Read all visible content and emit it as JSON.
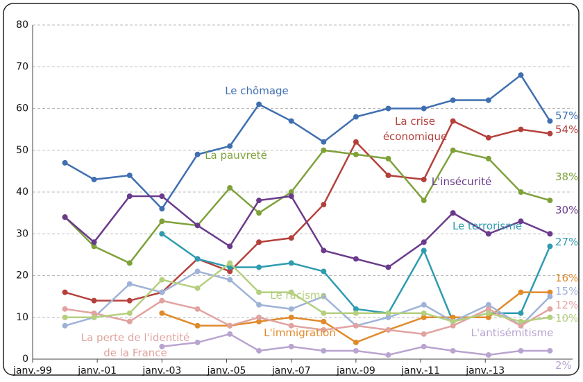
{
  "chart_data": {
    "type": "line",
    "x": [
      2000.0,
      2000.9,
      2002.0,
      2003.0,
      2004.1,
      2005.1,
      2006.0,
      2007.0,
      2008.0,
      2009.0,
      2010.0,
      2011.1,
      2012.0,
      2013.1,
      2014.1,
      2015.0
    ],
    "xlim": [
      1999,
      2015.7
    ],
    "xticks": [
      {
        "value": 1999,
        "label": "janv.-99"
      },
      {
        "value": 2001,
        "label": "janv.-01"
      },
      {
        "value": 2003,
        "label": "janv.-03"
      },
      {
        "value": 2005,
        "label": "janv.-05"
      },
      {
        "value": 2007,
        "label": "janv.-07"
      },
      {
        "value": 2009,
        "label": "janv.-09"
      },
      {
        "value": 2011,
        "label": "janv.-11"
      },
      {
        "value": 2013,
        "label": "janv.-13"
      }
    ],
    "ylim": [
      0,
      80
    ],
    "yticks": [
      0,
      10,
      20,
      30,
      40,
      50,
      60,
      70,
      80
    ],
    "grid": true,
    "series": [
      {
        "name": "Le chômage",
        "color": "#3f6fb0",
        "values": [
          47,
          43,
          44,
          36,
          49,
          51,
          61,
          57,
          52,
          58,
          60,
          60,
          62,
          62,
          68,
          57
        ],
        "value_labels": [
          null,
          null,
          null,
          null,
          null,
          null,
          null,
          null,
          null,
          null,
          null,
          null,
          null,
          null,
          null,
          "57%"
        ]
      },
      {
        "name": "La crise\néconomique",
        "color": "#b5403b",
        "values": [
          16,
          14,
          14,
          16,
          24,
          21,
          28,
          29,
          37,
          52,
          44,
          43,
          57,
          53,
          55,
          54
        ],
        "value_labels": [
          null,
          null,
          null,
          null,
          null,
          null,
          null,
          null,
          null,
          null,
          null,
          null,
          null,
          null,
          null,
          "54%"
        ]
      },
      {
        "name": "La pauvreté",
        "color": "#7ea13a",
        "values": [
          34,
          27,
          23,
          33,
          32,
          41,
          35,
          40,
          50,
          49,
          48,
          38,
          50,
          48,
          40,
          38
        ],
        "value_labels": [
          null,
          null,
          null,
          null,
          null,
          null,
          null,
          null,
          null,
          null,
          null,
          null,
          null,
          null,
          null,
          "38%"
        ]
      },
      {
        "name": "L'insécurité",
        "color": "#6a3a8c",
        "values": [
          34,
          28,
          39,
          39,
          32,
          27,
          38,
          39,
          26,
          24,
          22,
          28,
          35,
          30,
          33,
          30
        ],
        "value_labels": [
          null,
          null,
          null,
          null,
          null,
          null,
          null,
          null,
          null,
          null,
          null,
          null,
          null,
          null,
          null,
          "30%"
        ]
      },
      {
        "name": "Le terrorisme",
        "color": "#2f9bb0",
        "values": [
          null,
          null,
          null,
          30,
          24,
          22,
          22,
          23,
          21,
          12,
          11,
          26,
          9,
          11,
          11,
          27
        ],
        "value_labels": [
          null,
          null,
          null,
          null,
          null,
          null,
          null,
          null,
          null,
          null,
          null,
          null,
          null,
          null,
          null,
          "27%"
        ]
      },
      {
        "name": "L'immigration",
        "color": "#e08a2a",
        "values": [
          null,
          null,
          null,
          11,
          8,
          8,
          9,
          10,
          9,
          4,
          7,
          10,
          10,
          10,
          16,
          16
        ],
        "value_labels": [
          null,
          null,
          null,
          null,
          null,
          null,
          null,
          null,
          null,
          null,
          null,
          null,
          null,
          null,
          null,
          "16%"
        ]
      },
      {
        "color": "#9fb3d8",
        "values": [
          8,
          10,
          18,
          16,
          21,
          19,
          13,
          12,
          15,
          8,
          10,
          13,
          9,
          13,
          8,
          15
        ],
        "value_labels": [
          null,
          null,
          null,
          null,
          null,
          null,
          null,
          null,
          null,
          null,
          null,
          null,
          null,
          null,
          null,
          "15%"
        ]
      },
      {
        "name": "La perte de l'identité\nde la France",
        "color": "#e0a3a0",
        "values": [
          12,
          11,
          9,
          14,
          12,
          8,
          10,
          8,
          7,
          8,
          7,
          6,
          8,
          12,
          8,
          12
        ],
        "value_labels": [
          null,
          null,
          null,
          null,
          null,
          null,
          null,
          null,
          null,
          null,
          null,
          null,
          null,
          null,
          null,
          "12%"
        ]
      },
      {
        "name": "Le racisme",
        "color": "#b4cf7e",
        "values": [
          10,
          10,
          11,
          19,
          17,
          23,
          16,
          16,
          11,
          11,
          11,
          11,
          9,
          11,
          9,
          10
        ],
        "value_labels": [
          null,
          null,
          null,
          null,
          null,
          null,
          null,
          null,
          null,
          null,
          null,
          null,
          null,
          null,
          null,
          "10%"
        ]
      },
      {
        "name": "L'antisémitisme",
        "color": "#b9a4d0",
        "values": [
          null,
          null,
          null,
          3,
          4,
          6,
          2,
          3,
          2,
          2,
          1,
          3,
          2,
          1,
          2,
          2
        ],
        "value_labels": [
          null,
          null,
          null,
          null,
          null,
          null,
          null,
          null,
          null,
          null,
          null,
          null,
          null,
          null,
          null,
          "2%"
        ]
      }
    ]
  }
}
